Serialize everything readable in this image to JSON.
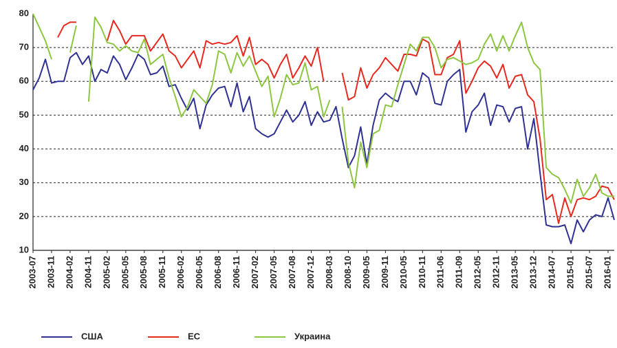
{
  "chart_data": {
    "type": "line",
    "categories": [
      "2003-07",
      null,
      null,
      "2003-11",
      null,
      null,
      "2004-02",
      null,
      null,
      "2004-11",
      null,
      null,
      "2005-02",
      null,
      null,
      "2005-05",
      null,
      null,
      "2005-08",
      null,
      null,
      "2005-11",
      null,
      null,
      "2006-02",
      null,
      null,
      "2006-05",
      null,
      null,
      "2006-08",
      null,
      null,
      "2006-11",
      null,
      null,
      "2007-02",
      null,
      null,
      "2007-05",
      null,
      null,
      "2007-08",
      null,
      null,
      "2007-12",
      null,
      null,
      "2008-03",
      null,
      null,
      "2008-10",
      null,
      null,
      "2009-05",
      null,
      null,
      "2009-11",
      null,
      null,
      "2010-05",
      null,
      null,
      "2010-11",
      null,
      null,
      "2011-06",
      null,
      null,
      "2011-09",
      null,
      null,
      "2012-05",
      null,
      null,
      "2012-11",
      null,
      null,
      "2013-05",
      null,
      null,
      "2013-12",
      null,
      null,
      "2014-07",
      null,
      null,
      "2015-01",
      null,
      null,
      "2015-07",
      null,
      null,
      "2016-01",
      null
    ],
    "series": [
      {
        "name": "США",
        "color": "#2e3192",
        "values": [
          57.5,
          61,
          66.5,
          59.5,
          60,
          60,
          67,
          68.5,
          65,
          67.5,
          60,
          63.5,
          62.5,
          67.5,
          65,
          60.5,
          64,
          68,
          66.5,
          62,
          62.5,
          64.5,
          58.5,
          59,
          55,
          51.5,
          55,
          46,
          53,
          56,
          58,
          58.5,
          52.5,
          59.5,
          51,
          55.5,
          46,
          44.5,
          43.5,
          44.5,
          48,
          51.5,
          48,
          50,
          54,
          47,
          51,
          48,
          48.5,
          52.5,
          43,
          34.5,
          38,
          46.5,
          35.5,
          47,
          54.5,
          56.5,
          55,
          54,
          60,
          60,
          56,
          62.5,
          61,
          53.5,
          53,
          60,
          62,
          63.5,
          45,
          51,
          53,
          56.5,
          47,
          53,
          52.5,
          48,
          52,
          52.5,
          40,
          49,
          33,
          17.5,
          17,
          17,
          17.5,
          12,
          19,
          15.5,
          19,
          20.5,
          20,
          25.5,
          19
        ]
      },
      {
        "name": "ЕС",
        "color": "#e8281e",
        "values": [
          null,
          null,
          null,
          null,
          73,
          76.5,
          77.5,
          77.5,
          null,
          null,
          null,
          null,
          72,
          78,
          75,
          71,
          73.5,
          73.5,
          73.5,
          69,
          71.5,
          74,
          69,
          67.5,
          64,
          66.5,
          69,
          64,
          72,
          71,
          71.5,
          71,
          71.5,
          73.5,
          67.5,
          73,
          65,
          66.5,
          65,
          61,
          65,
          68,
          61,
          64,
          67.5,
          64.5,
          70,
          60,
          null,
          null,
          62.5,
          54.5,
          55.5,
          64,
          58,
          62,
          64,
          67,
          65,
          63,
          68,
          68,
          67.5,
          72.5,
          71.5,
          62,
          62,
          67,
          68,
          72,
          56.5,
          60,
          64,
          66,
          64.5,
          61,
          65,
          58,
          61.5,
          62,
          56,
          54,
          43,
          25,
          26.5,
          18,
          25.5,
          20,
          25,
          25.5,
          25,
          26,
          29,
          28.5,
          25
        ]
      },
      {
        "name": "Украина",
        "color": "#8dc63f",
        "values": [
          80,
          76,
          72,
          66.5,
          null,
          null,
          68.5,
          76.5,
          null,
          54,
          79,
          76,
          71.5,
          71,
          69,
          70.5,
          69,
          68.5,
          72.5,
          65,
          66.5,
          68,
          61,
          55.5,
          49.5,
          52.5,
          57.5,
          55.5,
          53.5,
          59,
          69,
          68,
          62.5,
          68.5,
          64.5,
          67.5,
          63,
          58.5,
          61.5,
          49.5,
          55,
          62,
          59,
          59.5,
          65.5,
          57.5,
          58.5,
          49.5,
          54.5,
          null,
          52.5,
          36,
          28.5,
          42,
          34.5,
          44.5,
          45.5,
          53,
          52.5,
          59,
          65,
          71,
          69,
          73,
          73,
          70,
          64,
          66.5,
          67,
          66,
          65,
          65.5,
          66.5,
          71,
          74,
          69,
          73.5,
          69,
          73.5,
          77.5,
          70,
          65.5,
          63.5,
          34.5,
          32.5,
          31.5,
          28,
          24,
          31,
          26,
          28.5,
          32.5,
          27,
          26,
          26
        ]
      }
    ],
    "ylim": [
      10,
      80
    ],
    "yticks": [
      10,
      20,
      30,
      40,
      50,
      60,
      70,
      80
    ],
    "grid": true
  }
}
